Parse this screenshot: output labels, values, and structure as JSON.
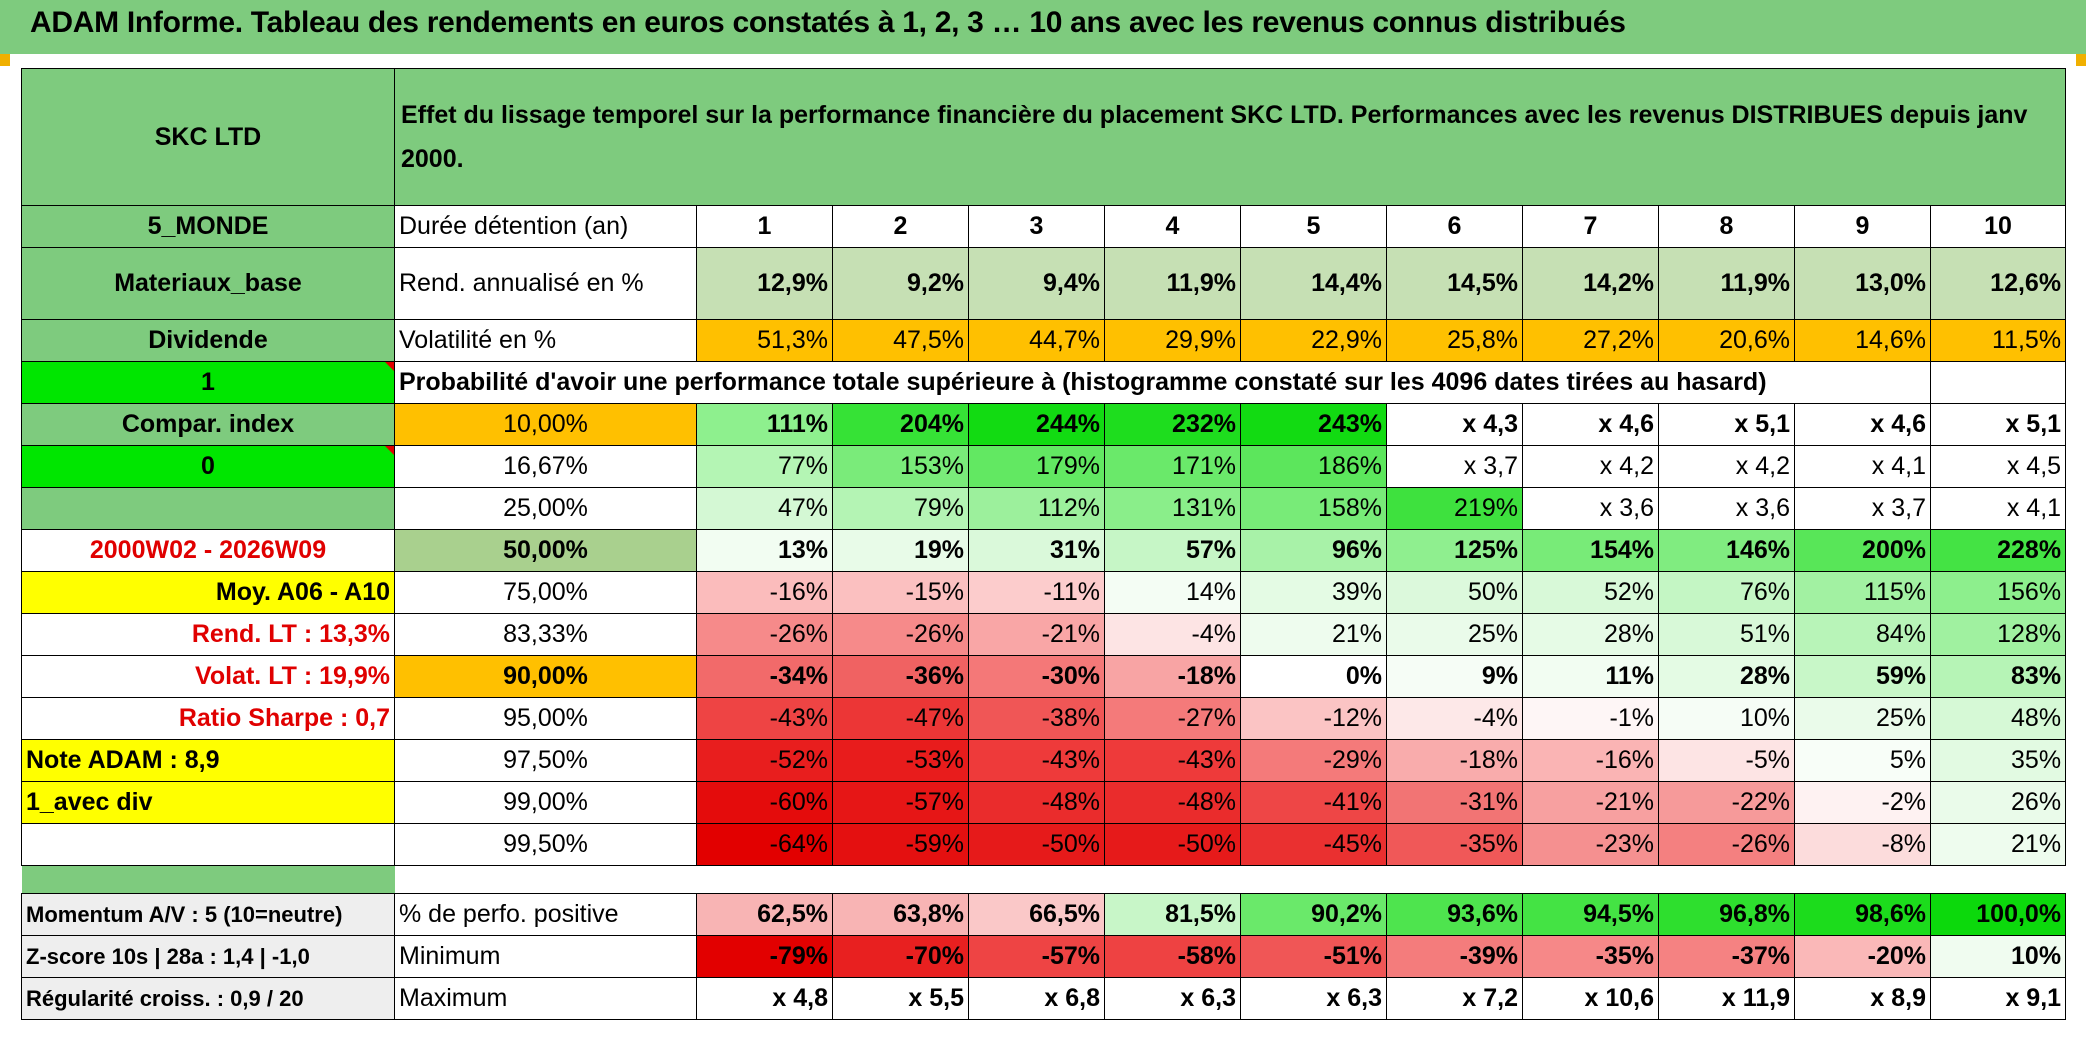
{
  "title": "ADAM Informe. Tableau des rendements en euros constatés à 1, 2, 3 … 10 ans avec les revenus connus distribués",
  "header": {
    "fund_name": "SKC LTD",
    "description": "Effet du lissage temporel sur la performance financière du placement SKC LTD. Performances avec les revenus DISTRIBUES depuis janv 2000."
  },
  "left": {
    "zone": "5_MONDE",
    "sector": "Materiaux_base",
    "type": "Dividende",
    "selector1": "1",
    "compar_index": "Compar. index",
    "selector2": "0",
    "blank": "",
    "period": "2000W02 - 2026W09",
    "moy": "Moy. A06 - A10",
    "rend_lt": "Rend. LT :   13,3%",
    "volat_lt": "Volat. LT :   19,9%",
    "sharpe": "Ratio Sharpe :    0,7",
    "note": "Note ADAM : 8,9",
    "avec_div": "1_avec div"
  },
  "labels": {
    "duree": "Durée détention (an)",
    "rend": "Rend. annualisé en %",
    "vol": "Volatilité en %",
    "proba": "Probabilité d'avoir une performance totale supérieure à (histogramme constaté sur les 4096 dates tirées au hasard)",
    "pos": "% de perfo. positive",
    "min": "Minimum",
    "max": "Maximum"
  },
  "years": [
    "1",
    "2",
    "3",
    "4",
    "5",
    "6",
    "7",
    "8",
    "9",
    "10"
  ],
  "rend": [
    "12,9%",
    "9,2%",
    "9,4%",
    "11,9%",
    "14,4%",
    "14,5%",
    "14,2%",
    "11,9%",
    "13,0%",
    "12,6%"
  ],
  "vol": [
    "51,3%",
    "47,5%",
    "44,7%",
    "29,9%",
    "22,9%",
    "25,8%",
    "27,2%",
    "20,6%",
    "14,6%",
    "11,5%"
  ],
  "prob_rows": [
    {
      "p": "10,00%",
      "v": [
        "111%",
        "204%",
        "244%",
        "232%",
        "243%",
        "x 4,3",
        "x 4,6",
        "x 5,1",
        "x 4,6",
        "x 5,1"
      ]
    },
    {
      "p": "16,67%",
      "v": [
        "77%",
        "153%",
        "179%",
        "171%",
        "186%",
        "x 3,7",
        "x 4,2",
        "x 4,2",
        "x 4,1",
        "x 4,5"
      ]
    },
    {
      "p": "25,00%",
      "v": [
        "47%",
        "79%",
        "112%",
        "131%",
        "158%",
        "219%",
        "x 3,6",
        "x 3,6",
        "x 3,7",
        "x 4,1"
      ]
    },
    {
      "p": "50,00%",
      "v": [
        "13%",
        "19%",
        "31%",
        "57%",
        "96%",
        "125%",
        "154%",
        "146%",
        "200%",
        "228%"
      ]
    },
    {
      "p": "75,00%",
      "v": [
        "-16%",
        "-15%",
        "-11%",
        "14%",
        "39%",
        "50%",
        "52%",
        "76%",
        "115%",
        "156%"
      ]
    },
    {
      "p": "83,33%",
      "v": [
        "-26%",
        "-26%",
        "-21%",
        "-4%",
        "21%",
        "25%",
        "28%",
        "51%",
        "84%",
        "128%"
      ]
    },
    {
      "p": "90,00%",
      "v": [
        "-34%",
        "-36%",
        "-30%",
        "-18%",
        "0%",
        "9%",
        "11%",
        "28%",
        "59%",
        "83%"
      ]
    },
    {
      "p": "95,00%",
      "v": [
        "-43%",
        "-47%",
        "-38%",
        "-27%",
        "-12%",
        "-4%",
        "-1%",
        "10%",
        "25%",
        "48%"
      ]
    },
    {
      "p": "97,50%",
      "v": [
        "-52%",
        "-53%",
        "-43%",
        "-43%",
        "-29%",
        "-18%",
        "-16%",
        "-5%",
        "5%",
        "35%"
      ]
    },
    {
      "p": "99,00%",
      "v": [
        "-60%",
        "-57%",
        "-48%",
        "-48%",
        "-41%",
        "-31%",
        "-21%",
        "-22%",
        "-2%",
        "26%"
      ]
    },
    {
      "p": "99,50%",
      "v": [
        "-64%",
        "-59%",
        "-50%",
        "-50%",
        "-45%",
        "-35%",
        "-23%",
        "-26%",
        "-8%",
        "21%"
      ]
    }
  ],
  "bottom": {
    "momentum": "Momentum A/V : 5 (10=neutre)",
    "zscore": "Z-score 10s | 28a : 1,4 | -1,0",
    "regularite": "Régularité croiss. : 0,9 / 20"
  },
  "pos": [
    "62,5%",
    "63,8%",
    "66,5%",
    "81,5%",
    "90,2%",
    "93,6%",
    "94,5%",
    "96,8%",
    "98,6%",
    "100,0%"
  ],
  "min": [
    "-79%",
    "-70%",
    "-57%",
    "-58%",
    "-51%",
    "-39%",
    "-35%",
    "-37%",
    "-20%",
    "10%"
  ],
  "max": [
    "x 4,8",
    "x 5,5",
    "x 6,8",
    "x 6,3",
    "x 6,3",
    "x 7,2",
    "x 10,6",
    "x 11,9",
    "x 8,9",
    "x 9,1"
  ],
  "colors": {
    "header_green": "#7ecb7e",
    "light_green": "#c6e0b4",
    "orange": "#ffc000",
    "bright_green": "#00e600",
    "yellow": "#ffff00",
    "red_text": "#e00000"
  }
}
